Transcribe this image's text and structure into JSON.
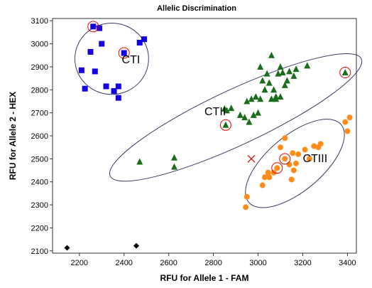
{
  "chart_data": {
    "type": "scatter",
    "title": "Allelic Discrimination",
    "xlabel": "RFU for Allele 1 - FAM",
    "ylabel": "RFU for Allele 2 - HEX",
    "xlim": [
      2080,
      3440
    ],
    "ylim": [
      2090,
      3110
    ],
    "xticks": [
      2200,
      2400,
      2600,
      2800,
      3000,
      3200,
      3400
    ],
    "yticks": [
      2100,
      2200,
      2300,
      2400,
      2500,
      2600,
      2700,
      2800,
      2900,
      3000,
      3100
    ],
    "grid": false,
    "colors": {
      "blue": "#1400e6",
      "green": "#1a6d1a",
      "orange": "#ff8c1a",
      "black": "#000000",
      "highlight": "#e60000",
      "ellipse": "#3a3a66"
    },
    "clusters": [
      {
        "label": "CTI",
        "center": [
          2345,
          2935
        ],
        "rx": 165,
        "ry": 155,
        "rotation_deg": 0
      },
      {
        "label": "CTII",
        "center": [
          2900,
          2680
        ],
        "rx": 620,
        "ry": 120,
        "rotation_deg": 25
      },
      {
        "label": "CTIII",
        "center": [
          3165,
          2480
        ],
        "rx": 270,
        "ry": 120,
        "rotation_deg": 40
      }
    ],
    "series": [
      {
        "marker": "square",
        "color": "blue",
        "points": [
          [
            2262,
            3075
          ],
          [
            2290,
            3068
          ],
          [
            2300,
            3000
          ],
          [
            2250,
            2965
          ],
          [
            2400,
            2960
          ],
          [
            2470,
            3005
          ],
          [
            2490,
            3020
          ],
          [
            2210,
            2885
          ],
          [
            2270,
            2880
          ],
          [
            2225,
            2805
          ],
          [
            2320,
            2815
          ],
          [
            2355,
            2795
          ],
          [
            2375,
            2815
          ],
          [
            2375,
            2765
          ]
        ]
      },
      {
        "marker": "triangle",
        "color": "green",
        "points": [
          [
            2855,
            2647
          ],
          [
            2850,
            2718
          ],
          [
            2860,
            2710
          ],
          [
            2880,
            2720
          ],
          [
            2920,
            2690
          ],
          [
            2940,
            2680
          ],
          [
            2960,
            2660
          ],
          [
            2980,
            2690
          ],
          [
            3000,
            2700
          ],
          [
            2950,
            2750
          ],
          [
            2970,
            2760
          ],
          [
            2990,
            2770
          ],
          [
            3010,
            2760
          ],
          [
            3030,
            2800
          ],
          [
            3050,
            2830
          ],
          [
            3070,
            2800
          ],
          [
            3080,
            2770
          ],
          [
            3060,
            2760
          ],
          [
            3020,
            2840
          ],
          [
            3040,
            2870
          ],
          [
            3090,
            2870
          ],
          [
            3100,
            2900
          ],
          [
            3120,
            2820
          ],
          [
            3130,
            2840
          ],
          [
            3140,
            2880
          ],
          [
            3160,
            2860
          ],
          [
            3170,
            2890
          ],
          [
            3080,
            2760
          ],
          [
            3100,
            2770
          ],
          [
            3060,
            2950
          ],
          [
            3010,
            2900
          ],
          [
            3220,
            2905
          ],
          [
            3390,
            2875
          ],
          [
            3110,
            2875
          ],
          [
            2470,
            2487
          ],
          [
            2625,
            2505
          ],
          [
            2625,
            2465
          ]
        ]
      },
      {
        "marker": "circle",
        "color": "orange",
        "points": [
          [
            3120,
            2500
          ],
          [
            3085,
            2460
          ],
          [
            3030,
            2420
          ],
          [
            3050,
            2420
          ],
          [
            3020,
            2385
          ],
          [
            3045,
            2440
          ],
          [
            3070,
            2440
          ],
          [
            3140,
            2475
          ],
          [
            3155,
            2525
          ],
          [
            3160,
            2450
          ],
          [
            3170,
            2480
          ],
          [
            3180,
            2520
          ],
          [
            3150,
            2410
          ],
          [
            3210,
            2540
          ],
          [
            3230,
            2500
          ],
          [
            3270,
            2550
          ],
          [
            3280,
            2565
          ],
          [
            3250,
            2555
          ],
          [
            3390,
            2660
          ],
          [
            3410,
            2680
          ],
          [
            3400,
            2620
          ],
          [
            2950,
            2335
          ],
          [
            2945,
            2290
          ],
          [
            3100,
            2550
          ],
          [
            3120,
            2590
          ]
        ]
      },
      {
        "marker": "diamond",
        "color": "black",
        "points": [
          [
            2145,
            2113
          ],
          [
            2455,
            2122
          ]
        ]
      },
      {
        "marker": "cross",
        "color": "highlight",
        "points": [
          [
            2970,
            2500
          ]
        ]
      }
    ],
    "highlighted": [
      [
        2262,
        3075
      ],
      [
        2400,
        2960
      ],
      [
        2855,
        2647
      ],
      [
        3390,
        2875
      ],
      [
        3085,
        2460
      ],
      [
        3120,
        2500
      ]
    ]
  }
}
